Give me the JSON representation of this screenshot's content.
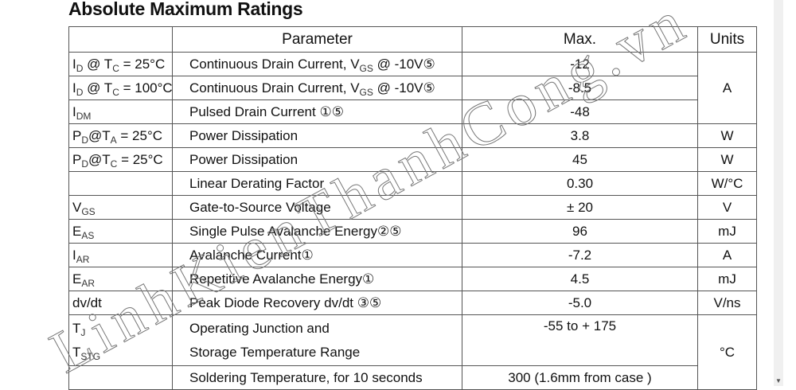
{
  "title": "Absolute Maximum Ratings",
  "headers": {
    "symbol": "",
    "parameter": "Parameter",
    "max": "Max.",
    "units": "Units"
  },
  "rows": [
    {
      "sym": "I",
      "sub": "D",
      "sym2": " @ T",
      "sub2": "C",
      "sym3": " = 25°C",
      "param": "Continuous Drain Current, V",
      "psub": "GS",
      "param2": " @ -10V⑤",
      "max": "-12"
    },
    {
      "sym": "I",
      "sub": "D",
      "sym2": " @ T",
      "sub2": "C",
      "sym3": " = 100°C",
      "param": "Continuous Drain Current, V",
      "psub": "GS",
      "param2": " @ -10V⑤",
      "max": "-8.5"
    },
    {
      "sym": "I",
      "sub": "DM",
      "param": "Pulsed Drain Current ①⑤",
      "max": "-48"
    },
    {
      "sym": "P",
      "sub": "D",
      "sym2": "@T",
      "sub2": "A",
      "sym3": " = 25°C",
      "param": "Power Dissipation",
      "max": "3.8",
      "unit": "W"
    },
    {
      "sym": "P",
      "sub": "D",
      "sym2": "@T",
      "sub2": "C",
      "sym3": " = 25°C",
      "param": "Power Dissipation",
      "max": "45",
      "unit": "W"
    },
    {
      "sym": "",
      "param": "Linear Derating Factor",
      "max": "0.30",
      "unit": "W/°C"
    },
    {
      "sym": "V",
      "sub": "GS",
      "param": "Gate-to-Source Voltage",
      "max": "± 20",
      "unit": "V"
    },
    {
      "sym": "E",
      "sub": "AS",
      "param": "Single Pulse Avalanche Energy②⑤",
      "max": "96",
      "unit": "mJ"
    },
    {
      "sym": "I",
      "sub": "AR",
      "param": "Avalanche Current①",
      "max": "-7.2",
      "unit": "A"
    },
    {
      "sym": "E",
      "sub": "AR",
      "param": "Repetitive Avalanche Energy①",
      "max": "4.5",
      "unit": "mJ"
    },
    {
      "sym": "dv/dt",
      "param": "Peak Diode Recovery dv/dt ③⑤",
      "max": "-5.0",
      "unit": "V/ns"
    },
    {
      "sym": "T",
      "sub": "J",
      "symB": "T",
      "subB": "STG",
      "param": "Operating Junction and",
      "paramB": "Storage Temperature Range",
      "max": "-55  to + 175"
    },
    {
      "sym": "",
      "param": "Soldering Temperature, for 10 seconds",
      "max": "300 (1.6mm from case )"
    }
  ],
  "shared_units": {
    "current": "A",
    "temperature": "°C"
  },
  "watermark": "LinhKienThanhCong.vn"
}
